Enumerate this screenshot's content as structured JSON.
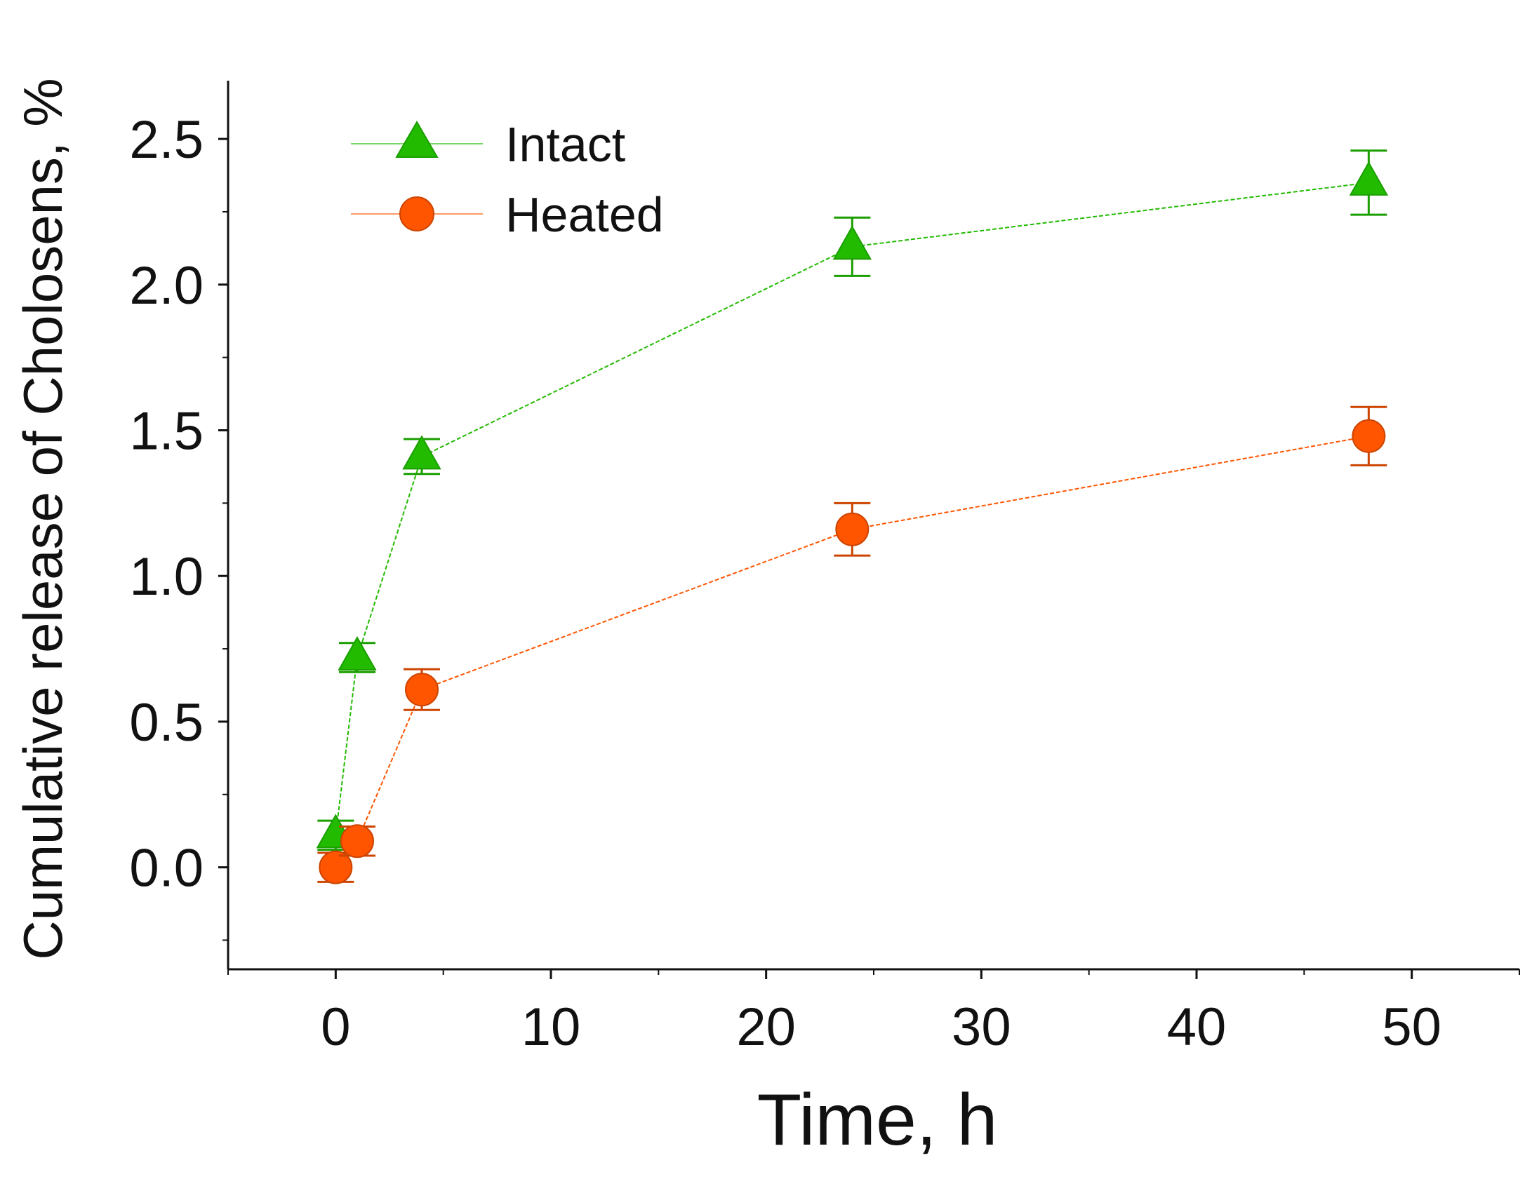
{
  "chart_data": {
    "type": "line",
    "title": "",
    "xlabel": "Time, h",
    "ylabel": "Cumulative release of Cholosens, %",
    "xlim": [
      -5,
      55
    ],
    "ylim": [
      -0.35,
      2.7
    ],
    "xticks": [
      0,
      10,
      20,
      30,
      40,
      50
    ],
    "xtick_labels": [
      "0",
      "10",
      "20",
      "30",
      "40",
      "50"
    ],
    "yticks": [
      0.0,
      0.5,
      1.0,
      1.5,
      2.0,
      2.5
    ],
    "ytick_labels": [
      "0.0",
      "0.5",
      "1.0",
      "1.5",
      "2.0",
      "2.5"
    ],
    "grid": false,
    "legend_position": "top-left",
    "series": [
      {
        "name": "Intact",
        "color": "#22bb00",
        "marker": "triangle",
        "x": [
          0,
          1,
          4,
          24,
          48
        ],
        "values": [
          0.11,
          0.72,
          1.41,
          2.13,
          2.35
        ],
        "errors": [
          0.05,
          0.05,
          0.06,
          0.1,
          0.11
        ]
      },
      {
        "name": "Heated",
        "color": "#ff5500",
        "marker": "circle",
        "x": [
          0,
          1,
          4,
          24,
          48
        ],
        "values": [
          0.0,
          0.09,
          0.61,
          1.16,
          1.48
        ],
        "errors": [
          0.05,
          0.05,
          0.07,
          0.09,
          0.1
        ]
      }
    ]
  }
}
